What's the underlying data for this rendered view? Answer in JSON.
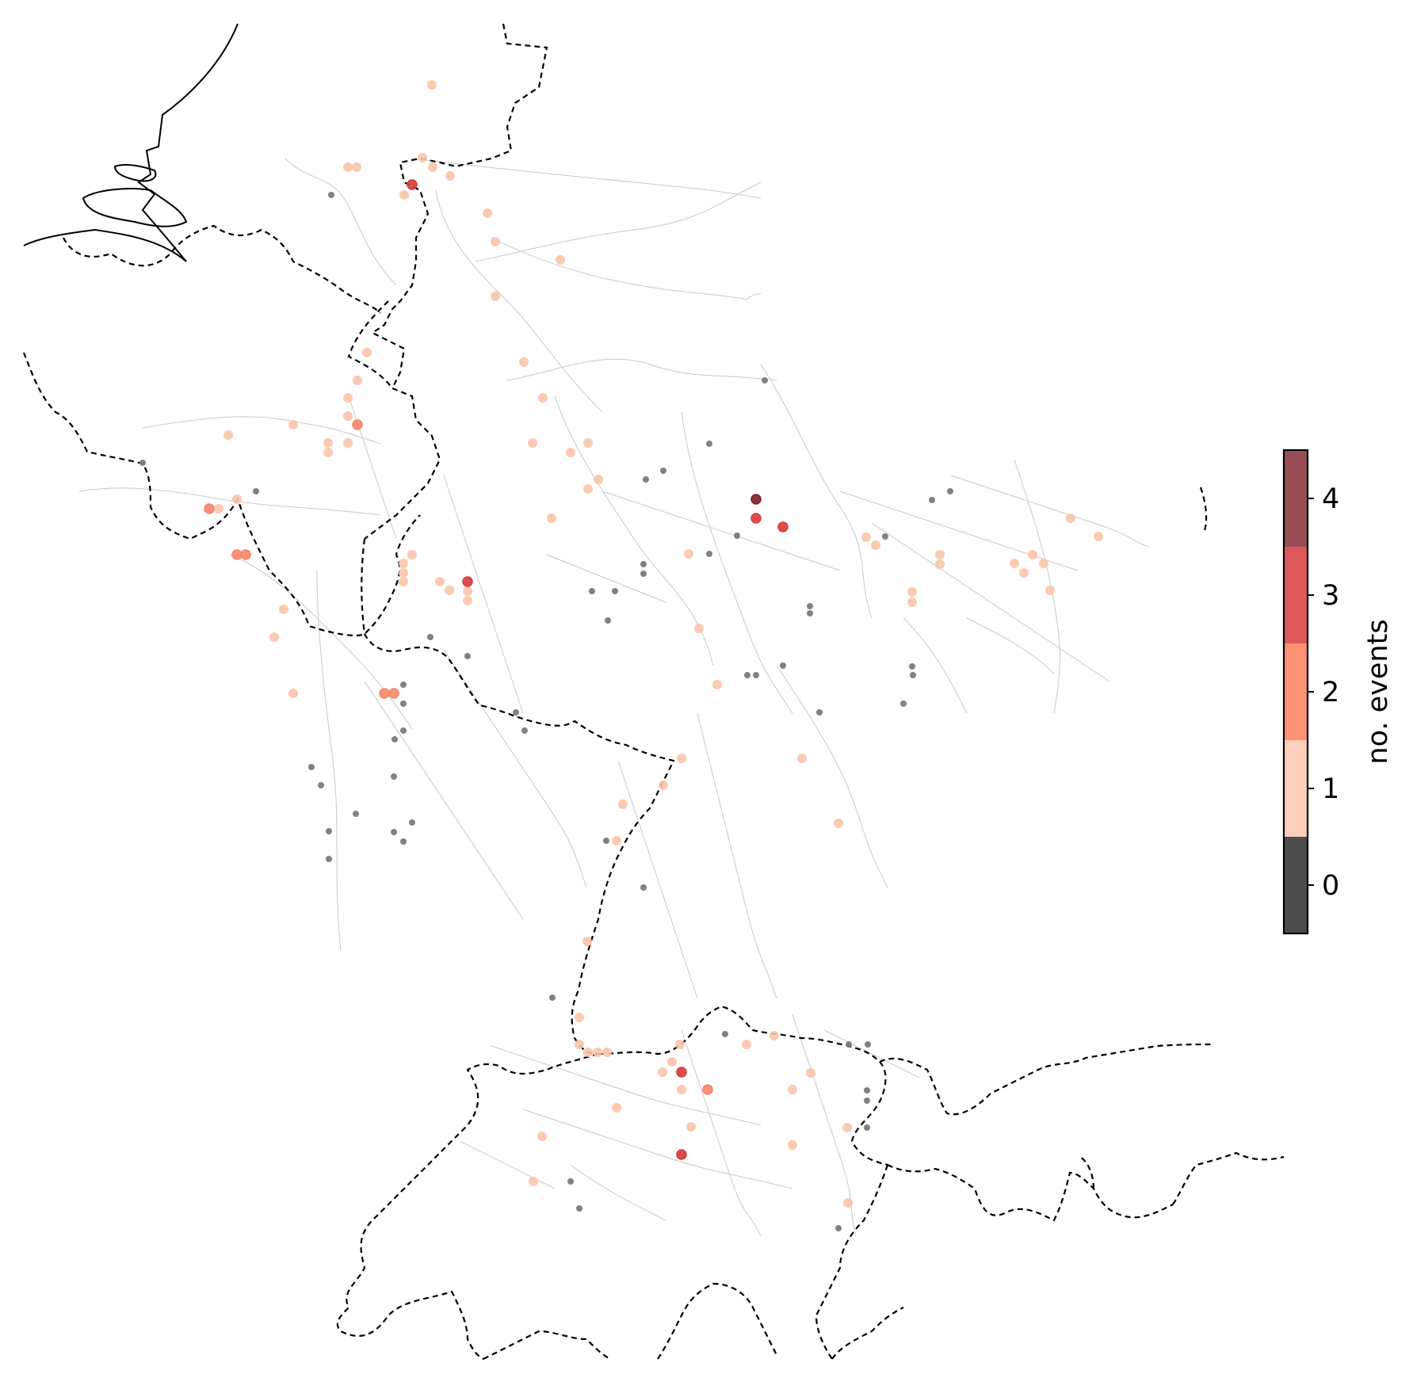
{
  "colorbar": {
    "label": "no. events",
    "ticks": [
      "0",
      "1",
      "2",
      "3",
      "4"
    ],
    "colors": [
      "#4d4d4d",
      "#fdd0bb",
      "#fc9272",
      "#de5a5a",
      "#984d55"
    ]
  },
  "legend_placement": "right",
  "point_colors": {
    "0": "#7a7a7a",
    "1": "#fbc4ab",
    "2": "#f6866a",
    "3": "#d63a3a",
    "4": "#7d1f28"
  }
}
